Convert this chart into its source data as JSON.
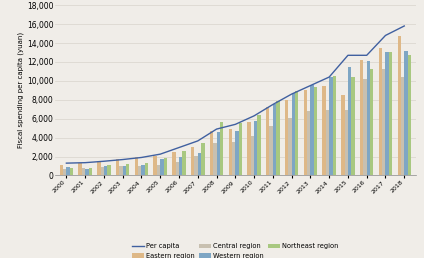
{
  "years": [
    2000,
    2001,
    2002,
    2003,
    2004,
    2005,
    2006,
    2007,
    2008,
    2009,
    2010,
    2011,
    2012,
    2013,
    2014,
    2015,
    2016,
    2017,
    2018
  ],
  "eastern": [
    1100,
    1300,
    1500,
    1700,
    1900,
    2100,
    2500,
    3000,
    4700,
    4900,
    5600,
    7200,
    8000,
    9000,
    9500,
    8500,
    12200,
    13500,
    14700
  ],
  "central": [
    650,
    800,
    850,
    950,
    1000,
    1150,
    1450,
    2100,
    3400,
    3500,
    4200,
    5200,
    6100,
    6800,
    6900,
    6900,
    10200,
    11200,
    10400
  ],
  "western": [
    850,
    650,
    950,
    1050,
    1100,
    1700,
    1950,
    2400,
    4600,
    4700,
    5800,
    7600,
    8700,
    9600,
    10400,
    11500,
    12100,
    13100,
    13200
  ],
  "northeast": [
    750,
    800,
    1100,
    1200,
    1350,
    1800,
    2600,
    3400,
    5600,
    5500,
    6400,
    7900,
    8900,
    9400,
    10500,
    10400,
    11300,
    13100,
    12700
  ],
  "per_capita": [
    1300,
    1350,
    1500,
    1680,
    1900,
    2250,
    2950,
    3650,
    4900,
    5400,
    6300,
    7500,
    8600,
    9500,
    10400,
    12700,
    12700,
    14800,
    15800
  ],
  "eastern_color": "#deb887",
  "central_color": "#c8c0b0",
  "western_color": "#7ea6c4",
  "northeast_color": "#a8c880",
  "per_capita_color": "#4060a0",
  "ylabel": "Fiscal spending per capita (yuan)",
  "ylim": [
    0,
    18000
  ],
  "yticks": [
    0,
    2000,
    4000,
    6000,
    8000,
    10000,
    12000,
    14000,
    16000,
    18000
  ],
  "legend_eastern": "Eastern region",
  "legend_central": "Central region",
  "legend_western": "Western region",
  "legend_northeast": "Northeast region",
  "legend_per_capita": "Per capita",
  "bg_color": "#f0ede8"
}
